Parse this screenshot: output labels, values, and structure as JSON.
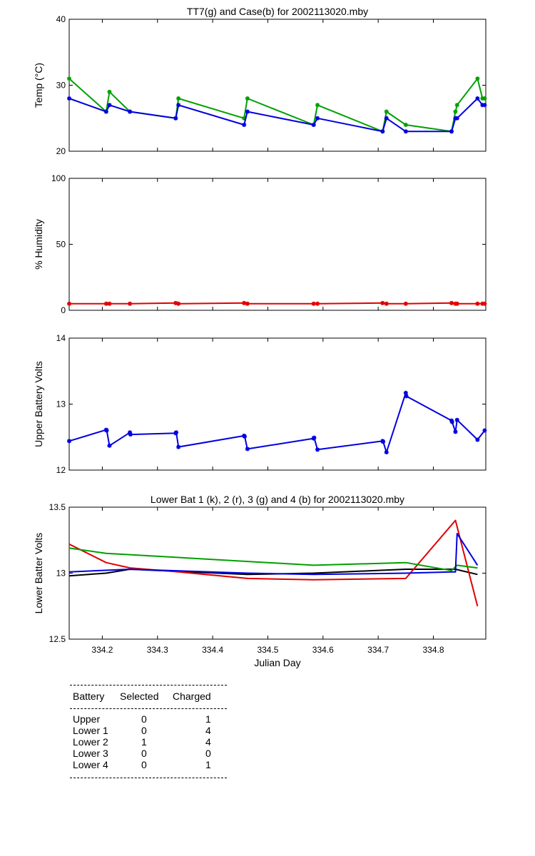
{
  "chart_data": [
    {
      "type": "line",
      "title": "TT7(g) and Case(b) for 2002113020.mby",
      "xlabel": "",
      "ylabel": "Temp  (°C)",
      "xlim": [
        334.14,
        334.895
      ],
      "ylim": [
        20,
        40
      ],
      "yticks": [
        20,
        30,
        40
      ],
      "grid": false,
      "markers": true,
      "series": [
        {
          "color": "#00a000",
          "x": [
            334.14,
            334.207,
            334.213,
            334.25,
            334.333,
            334.338,
            334.457,
            334.463,
            334.583,
            334.59,
            334.708,
            334.715,
            334.75,
            334.833,
            334.84,
            334.843,
            334.88,
            334.889,
            334.893
          ],
          "y": [
            31,
            26,
            29,
            26,
            25,
            28,
            25,
            28,
            24,
            27,
            23,
            26,
            24,
            23,
            26,
            27,
            31,
            28,
            28
          ]
        },
        {
          "color": "#0000e0",
          "x": [
            334.14,
            334.207,
            334.213,
            334.25,
            334.333,
            334.338,
            334.457,
            334.463,
            334.583,
            334.59,
            334.708,
            334.715,
            334.75,
            334.833,
            334.84,
            334.843,
            334.88,
            334.889,
            334.893
          ],
          "y": [
            28,
            26,
            27,
            26,
            25,
            27,
            24,
            26,
            24,
            25,
            23,
            25,
            23,
            23,
            25,
            25,
            28,
            27,
            27
          ]
        }
      ]
    },
    {
      "type": "line",
      "title": "",
      "xlabel": "",
      "ylabel": "% Humidity",
      "xlim": [
        334.14,
        334.895
      ],
      "ylim": [
        0,
        100
      ],
      "yticks": [
        0,
        50,
        100
      ],
      "grid": false,
      "markers": true,
      "series": [
        {
          "color": "#e00000",
          "x": [
            334.14,
            334.207,
            334.213,
            334.25,
            334.333,
            334.338,
            334.457,
            334.463,
            334.583,
            334.59,
            334.708,
            334.715,
            334.75,
            334.833,
            334.84,
            334.843,
            334.88,
            334.889,
            334.893
          ],
          "y": [
            5,
            5,
            5,
            5,
            5.5,
            5,
            5.5,
            5,
            5,
            5,
            5.5,
            5,
            5,
            5.5,
            5,
            5,
            5,
            5,
            5
          ]
        }
      ]
    },
    {
      "type": "line",
      "title": "",
      "xlabel": "",
      "ylabel": "Upper Battery Volts",
      "xlim": [
        334.14,
        334.895
      ],
      "ylim": [
        12,
        14
      ],
      "yticks": [
        12,
        13,
        14
      ],
      "grid": false,
      "markers": true,
      "series": [
        {
          "color": "#0000e0",
          "x": [
            334.14,
            334.207,
            334.208,
            334.213,
            334.25,
            334.251,
            334.333,
            334.334,
            334.338,
            334.457,
            334.458,
            334.463,
            334.583,
            334.584,
            334.59,
            334.708,
            334.709,
            334.715,
            334.75,
            334.751,
            334.833,
            334.834,
            334.84,
            334.843,
            334.88,
            334.893
          ],
          "y": [
            12.44,
            12.61,
            12.6,
            12.37,
            12.57,
            12.54,
            12.56,
            12.57,
            12.35,
            12.52,
            12.51,
            12.32,
            12.48,
            12.49,
            12.31,
            12.44,
            12.43,
            12.27,
            13.17,
            13.12,
            12.75,
            12.73,
            12.58,
            12.76,
            12.46,
            12.6
          ]
        }
      ]
    },
    {
      "type": "line",
      "title": "Lower Bat 1 (k), 2 (r), 3 (g) and 4 (b) for 2002113020.mby",
      "xlabel": "Julian Day",
      "ylabel": "Lower Batter Volts",
      "xlim": [
        334.14,
        334.895
      ],
      "ylim": [
        12.5,
        13.5
      ],
      "yticks": [
        12.5,
        13,
        13.5
      ],
      "ytick_labels": [
        "12.5",
        "13",
        "13.5"
      ],
      "xticks": [
        334.2,
        334.3,
        334.4,
        334.5,
        334.6,
        334.7,
        334.8
      ],
      "xtick_labels": [
        "334.2",
        "334.3",
        "334.4",
        "334.5",
        "334.6",
        "334.7",
        "334.8"
      ],
      "grid": false,
      "markers": false,
      "series": [
        {
          "color": "#000000",
          "x": [
            334.14,
            334.207,
            334.25,
            334.463,
            334.583,
            334.75,
            334.84,
            334.88
          ],
          "y": [
            12.98,
            13.0,
            13.03,
            12.99,
            13.0,
            13.03,
            13.03,
            12.99
          ]
        },
        {
          "color": "#e00000",
          "x": [
            334.14,
            334.207,
            334.25,
            334.338,
            334.463,
            334.583,
            334.75,
            334.84,
            334.88
          ],
          "y": [
            13.22,
            13.08,
            13.04,
            13.01,
            12.96,
            12.95,
            12.96,
            13.4,
            12.75
          ]
        },
        {
          "color": "#00a000",
          "x": [
            334.14,
            334.207,
            334.583,
            334.75,
            334.833,
            334.843,
            334.88
          ],
          "y": [
            13.19,
            13.15,
            13.06,
            13.08,
            13.02,
            13.06,
            13.04
          ]
        },
        {
          "color": "#0000e0",
          "x": [
            334.14,
            334.25,
            334.463,
            334.583,
            334.75,
            334.833,
            334.84,
            334.843,
            334.88
          ],
          "y": [
            13.01,
            13.03,
            13.0,
            12.99,
            13.0,
            13.01,
            13.01,
            13.3,
            13.06
          ]
        }
      ]
    }
  ],
  "battery_table": {
    "headers": [
      "Battery",
      "Selected",
      "Charged"
    ],
    "rows": [
      {
        "name": "Upper",
        "selected": "0",
        "charged": "1"
      },
      {
        "name": "Lower 1",
        "selected": "0",
        "charged": "4"
      },
      {
        "name": "Lower 2",
        "selected": "1",
        "charged": "4"
      },
      {
        "name": "Lower 3",
        "selected": "0",
        "charged": "0"
      },
      {
        "name": "Lower 4",
        "selected": "0",
        "charged": "1"
      }
    ]
  }
}
